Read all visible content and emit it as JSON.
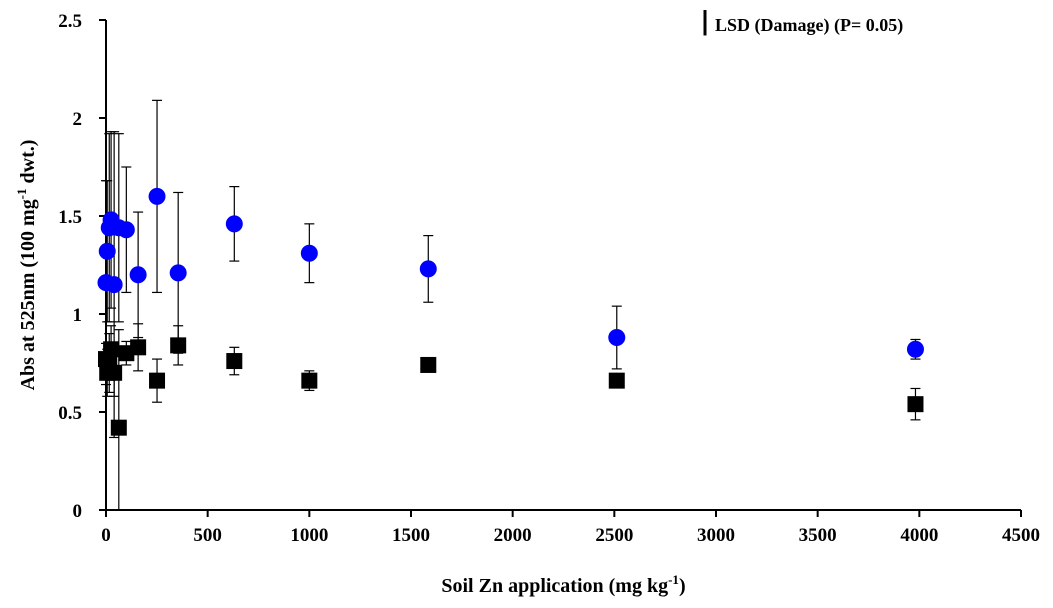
{
  "chart_data": {
    "type": "scatter",
    "title": "",
    "xlabel": {
      "main": "Soil Zn application (mg kg",
      "sup": "-1",
      "tail": ")"
    },
    "ylabel": {
      "main": "Abs at 525nm (100 mg",
      "sup": "-1",
      "tail": " dwt.)"
    },
    "xlim": [
      0,
      4500
    ],
    "ylim": [
      0,
      2.5
    ],
    "xticks": [
      0,
      500,
      1000,
      1500,
      2000,
      2500,
      3000,
      3500,
      4000,
      4500
    ],
    "yticks": [
      0,
      0.5,
      1,
      1.5,
      2,
      2.5
    ],
    "xtick_labels": [
      "0",
      "500",
      "1000",
      "1500",
      "2000",
      "2500",
      "3000",
      "3500",
      "4000",
      "4500"
    ],
    "ytick_labels": [
      "0",
      "0.5",
      "1",
      "1.5",
      "2",
      "2.5"
    ],
    "grid": false,
    "legend": {
      "text": "LSD (Damage) (P= 0.05)",
      "placement": "top-right",
      "bar_value": 0.13
    },
    "series": [
      {
        "marker": "circle",
        "color": "#0000ff",
        "points": [
          {
            "x": 0,
            "y": 1.16,
            "err": 0.52
          },
          {
            "x": 6,
            "y": 1.32,
            "err": 0.36
          },
          {
            "x": 16,
            "y": 1.44,
            "err": 0.48
          },
          {
            "x": 25,
            "y": 1.48,
            "err": 0.45
          },
          {
            "x": 40,
            "y": 1.15,
            "err": 0.78
          },
          {
            "x": 63,
            "y": 1.44,
            "err": 0.48
          },
          {
            "x": 100,
            "y": 1.43,
            "err": 0.32
          },
          {
            "x": 158,
            "y": 1.2,
            "err": 0.32
          },
          {
            "x": 251,
            "y": 1.6,
            "err": 0.49
          },
          {
            "x": 355,
            "y": 1.21,
            "err": 0.41
          },
          {
            "x": 631,
            "y": 1.46,
            "err": 0.19
          },
          {
            "x": 1000,
            "y": 1.31,
            "err": 0.15
          },
          {
            "x": 1585,
            "y": 1.23,
            "err": 0.17
          },
          {
            "x": 2512,
            "y": 0.88,
            "err": 0.16
          },
          {
            "x": 3981,
            "y": 0.82,
            "err": 0.05
          }
        ]
      },
      {
        "marker": "square",
        "color": "#000000",
        "points": [
          {
            "x": 0,
            "y": 0.77,
            "err": 0.08
          },
          {
            "x": 6,
            "y": 0.7,
            "err": 0.12
          },
          {
            "x": 16,
            "y": 0.75,
            "err": 0.15
          },
          {
            "x": 25,
            "y": 0.82,
            "err": 0.12
          },
          {
            "x": 40,
            "y": 0.7,
            "err": 0.12
          },
          {
            "x": 63,
            "y": 0.42,
            "err": 0.5
          },
          {
            "x": 100,
            "y": 0.8,
            "err": 0.06
          },
          {
            "x": 158,
            "y": 0.83,
            "err": 0.12
          },
          {
            "x": 251,
            "y": 0.66,
            "err": 0.11
          },
          {
            "x": 355,
            "y": 0.84,
            "err": 0.1
          },
          {
            "x": 631,
            "y": 0.76,
            "err": 0.07
          },
          {
            "x": 1000,
            "y": 0.66,
            "err": 0.05
          },
          {
            "x": 1585,
            "y": 0.74,
            "err": 0.02
          },
          {
            "x": 2512,
            "y": 0.66,
            "err": 0.03
          },
          {
            "x": 3981,
            "y": 0.54,
            "err": 0.08
          }
        ]
      }
    ]
  }
}
